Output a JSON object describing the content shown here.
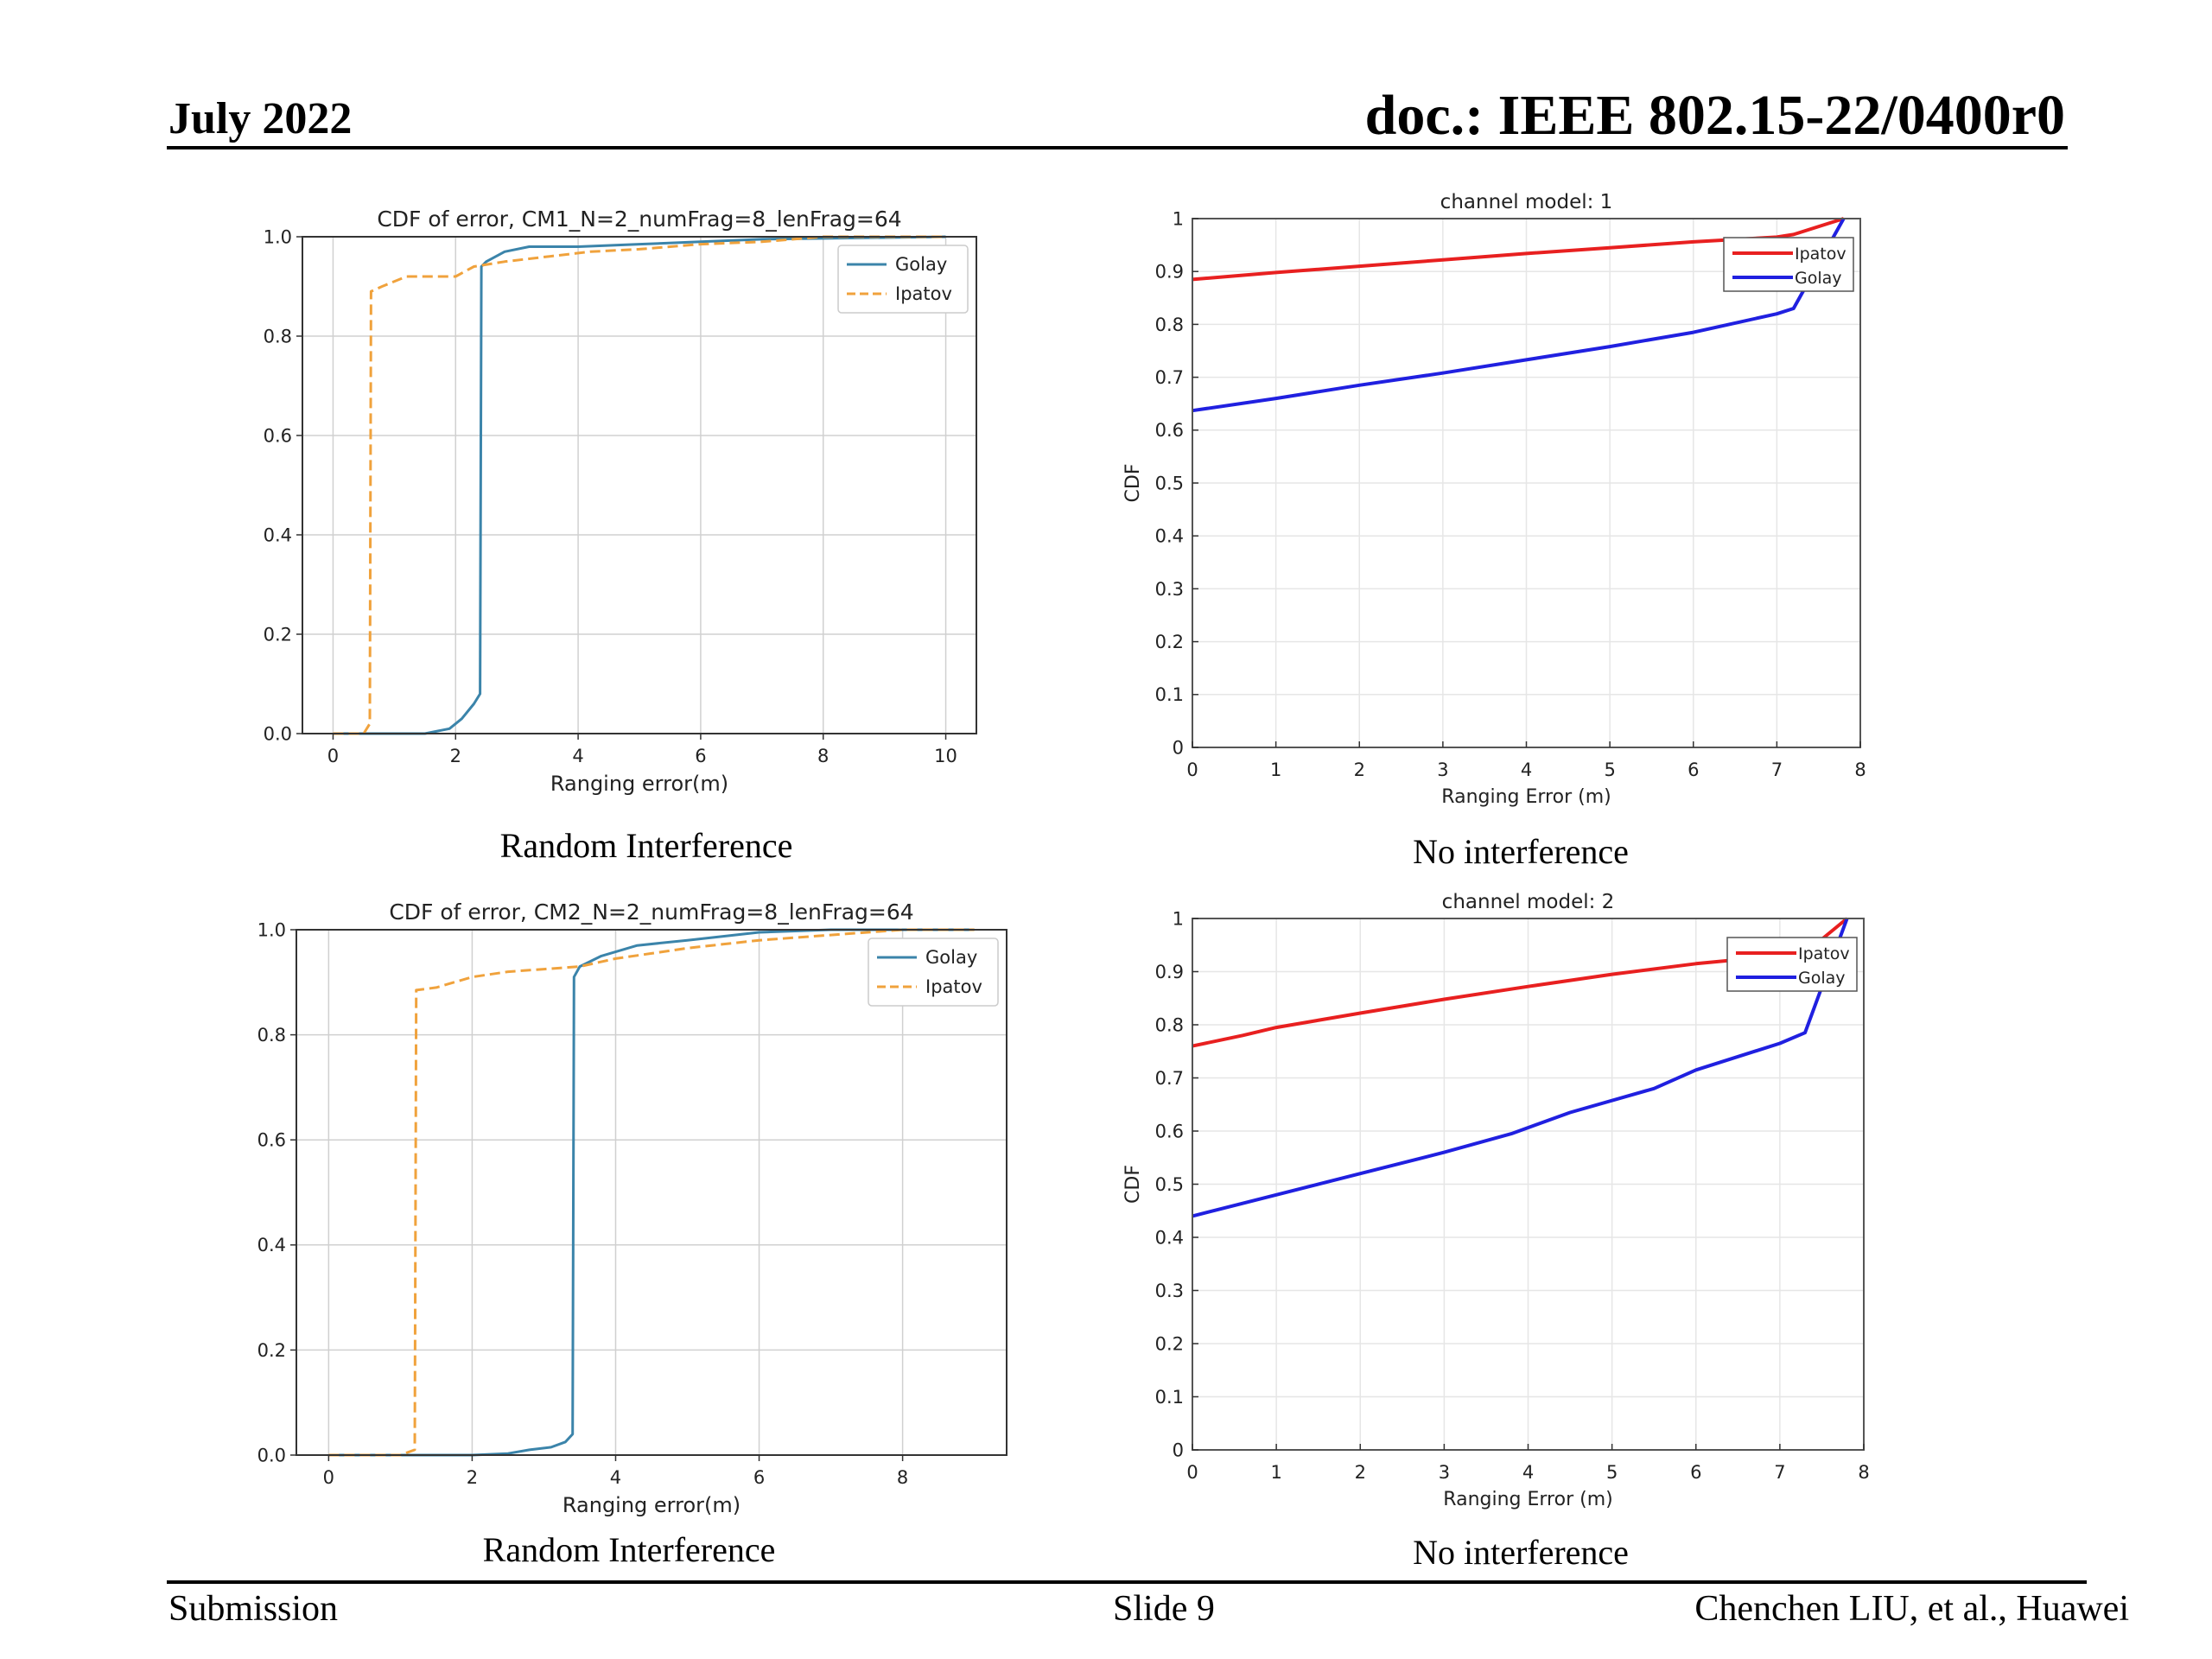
{
  "header": {
    "date": "July 2022",
    "doc": "doc.: IEEE 802.15-22/0400r0"
  },
  "footer": {
    "left": "Submission",
    "center": "Slide 9",
    "right": "Chenchen LIU, et al., Huawei"
  },
  "captions": {
    "top_left": "Random Interference",
    "top_right": "No interference",
    "bottom_left": "Random Interference",
    "bottom_right": "No interference"
  },
  "colors": {
    "golay_mpl": "#3b84aa",
    "ipatov_mpl": "#f0a23c",
    "ipatov_matlab": "#e82020",
    "golay_matlab": "#2020e0"
  },
  "chart_data": [
    {
      "id": "cm1-random",
      "type": "line",
      "title": "CDF of error, CM1_N=2_numFrag=8_lenFrag=64",
      "xlabel": "Ranging error(m)",
      "ylabel": "",
      "xlim": [
        -0.5,
        10.5
      ],
      "ylim": [
        0,
        1.0
      ],
      "xticks": [
        0,
        2,
        4,
        6,
        8,
        10
      ],
      "xtick_labels": [
        "0",
        "2",
        "4",
        "6",
        "8",
        "10"
      ],
      "yticks": [
        0,
        0.2,
        0.4,
        0.6,
        0.8,
        1.0
      ],
      "ytick_labels": [
        "0.0",
        "0.2",
        "0.4",
        "0.6",
        "0.8",
        "1.0"
      ],
      "grid": true,
      "legend": "top-right",
      "series": [
        {
          "name": "Golay",
          "style": "solid",
          "x": [
            0,
            1.5,
            1.9,
            2.1,
            2.3,
            2.4,
            2.42,
            2.5,
            2.8,
            3.2,
            4.0,
            5.0,
            6.0,
            7.0,
            10.0
          ],
          "y": [
            0,
            0,
            0.01,
            0.03,
            0.06,
            0.08,
            0.94,
            0.95,
            0.97,
            0.98,
            0.98,
            0.985,
            0.99,
            0.995,
            1.0
          ]
        },
        {
          "name": "Ipatov",
          "style": "dashed",
          "x": [
            0,
            0.5,
            0.6,
            0.62,
            0.8,
            1.2,
            2.0,
            2.3,
            2.8,
            3.5,
            4.2,
            5.0,
            6.0,
            7.0,
            8.0,
            10.0
          ],
          "y": [
            0,
            0,
            0.02,
            0.89,
            0.9,
            0.92,
            0.92,
            0.94,
            0.95,
            0.96,
            0.97,
            0.975,
            0.985,
            0.99,
            1.0,
            1.0
          ]
        }
      ]
    },
    {
      "id": "cm1-none",
      "type": "line",
      "title": "channel model: 1",
      "xlabel": "Ranging Error (m)",
      "ylabel": "CDF",
      "xlim": [
        0,
        8
      ],
      "ylim": [
        0,
        1
      ],
      "xticks": [
        0,
        1,
        2,
        3,
        4,
        5,
        6,
        7,
        8
      ],
      "xtick_labels": [
        "0",
        "1",
        "2",
        "3",
        "4",
        "5",
        "6",
        "7",
        "8"
      ],
      "yticks": [
        0,
        0.1,
        0.2,
        0.3,
        0.4,
        0.5,
        0.6,
        0.7,
        0.8,
        0.9,
        1
      ],
      "ytick_labels": [
        "0",
        "0.1",
        "0.2",
        "0.3",
        "0.4",
        "0.5",
        "0.6",
        "0.7",
        "0.8",
        "0.9",
        "1"
      ],
      "grid": true,
      "legend": "top-right",
      "series": [
        {
          "name": "Ipatov",
          "x": [
            0,
            1,
            2,
            3,
            4,
            5,
            6,
            7,
            7.2,
            7.8
          ],
          "y": [
            0.885,
            0.898,
            0.91,
            0.922,
            0.934,
            0.945,
            0.956,
            0.965,
            0.97,
            1.0
          ]
        },
        {
          "name": "Golay",
          "x": [
            0,
            1,
            2,
            3,
            4,
            5,
            6,
            7,
            7.2,
            7.8
          ],
          "y": [
            0.637,
            0.66,
            0.685,
            0.708,
            0.733,
            0.758,
            0.785,
            0.82,
            0.83,
            1.0
          ]
        }
      ]
    },
    {
      "id": "cm2-random",
      "type": "line",
      "title": "CDF of error, CM2_N=2_numFrag=8_lenFrag=64",
      "xlabel": "Ranging error(m)",
      "ylabel": "",
      "xlim": [
        -0.45,
        9.45
      ],
      "ylim": [
        0,
        1.0
      ],
      "xticks": [
        0,
        2,
        4,
        6,
        8
      ],
      "xtick_labels": [
        "0",
        "2",
        "4",
        "6",
        "8"
      ],
      "yticks": [
        0,
        0.2,
        0.4,
        0.6,
        0.8,
        1.0
      ],
      "ytick_labels": [
        "0.0",
        "0.2",
        "0.4",
        "0.6",
        "0.8",
        "1.0"
      ],
      "grid": true,
      "legend": "top-right",
      "series": [
        {
          "name": "Golay",
          "style": "solid",
          "x": [
            0,
            2.0,
            2.5,
            2.8,
            3.1,
            3.3,
            3.4,
            3.42,
            3.5,
            3.8,
            4.3,
            5.0,
            6.0,
            7.0,
            9.0
          ],
          "y": [
            0,
            0,
            0.003,
            0.01,
            0.015,
            0.025,
            0.04,
            0.91,
            0.93,
            0.95,
            0.97,
            0.98,
            0.995,
            1.0,
            1.0
          ]
        },
        {
          "name": "Ipatov",
          "style": "dashed",
          "x": [
            0,
            1.0,
            1.2,
            1.22,
            1.5,
            2.0,
            2.5,
            3.0,
            3.5,
            4.0,
            4.5,
            5.0,
            6.0,
            7.0,
            8.0,
            9.0
          ],
          "y": [
            0,
            0,
            0.01,
            0.885,
            0.89,
            0.91,
            0.92,
            0.925,
            0.93,
            0.945,
            0.955,
            0.965,
            0.98,
            0.99,
            1.0,
            1.0
          ]
        }
      ]
    },
    {
      "id": "cm2-none",
      "type": "line",
      "title": "channel model: 2",
      "xlabel": "Ranging Error (m)",
      "ylabel": "CDF",
      "xlim": [
        0,
        8
      ],
      "ylim": [
        0,
        1
      ],
      "xticks": [
        0,
        1,
        2,
        3,
        4,
        5,
        6,
        7,
        8
      ],
      "xtick_labels": [
        "0",
        "1",
        "2",
        "3",
        "4",
        "5",
        "6",
        "7",
        "8"
      ],
      "yticks": [
        0,
        0.1,
        0.2,
        0.3,
        0.4,
        0.5,
        0.6,
        0.7,
        0.8,
        0.9,
        1
      ],
      "ytick_labels": [
        "0",
        "0.1",
        "0.2",
        "0.3",
        "0.4",
        "0.5",
        "0.6",
        "0.7",
        "0.8",
        "0.9",
        "1"
      ],
      "grid": true,
      "legend": "top-right",
      "series": [
        {
          "name": "Ipatov",
          "x": [
            0,
            0.6,
            1,
            2,
            3,
            4,
            5,
            6,
            7,
            7.3,
            7.8
          ],
          "y": [
            0.76,
            0.78,
            0.795,
            0.822,
            0.848,
            0.872,
            0.895,
            0.915,
            0.93,
            0.935,
            1.0
          ]
        },
        {
          "name": "Golay",
          "x": [
            0,
            1,
            2,
            3,
            3.8,
            4.5,
            5.5,
            6,
            7,
            7.3,
            7.8
          ],
          "y": [
            0.44,
            0.48,
            0.52,
            0.56,
            0.595,
            0.635,
            0.68,
            0.715,
            0.765,
            0.785,
            1.0
          ]
        }
      ]
    }
  ]
}
